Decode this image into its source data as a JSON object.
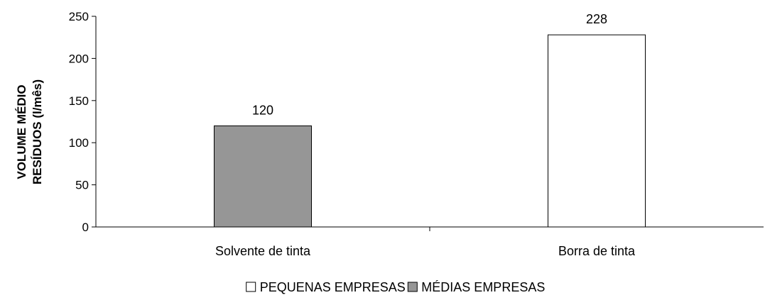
{
  "chart_data": {
    "type": "bar",
    "categories": [
      "Solvente de tinta",
      "Borra de tinta"
    ],
    "series": [
      {
        "name": "PEQUENAS EMPRESAS",
        "color": "#ffffff",
        "values": [
          null,
          228
        ]
      },
      {
        "name": "MÉDIAS EMPRESAS",
        "color": "#969696",
        "values": [
          120,
          null
        ]
      }
    ],
    "data_labels": [
      "120",
      "228"
    ],
    "yticks": [
      0,
      50,
      100,
      150,
      200,
      250
    ],
    "ylim": [
      0,
      250
    ],
    "ylabel_lines": [
      "VOLUME MÉDIO",
      "RESÍDUOS (l/mês)"
    ],
    "xlabel": "",
    "grid": false,
    "legend_position": "bottom"
  }
}
